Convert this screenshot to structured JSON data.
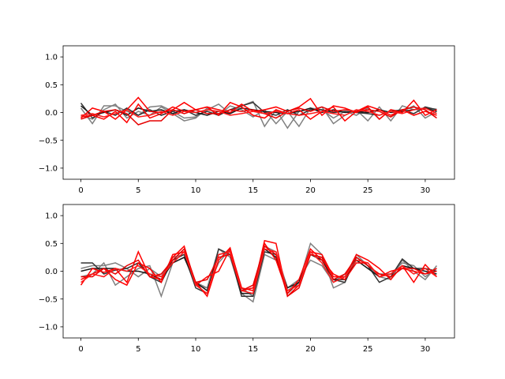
{
  "chart_data": [
    {
      "type": "line",
      "title": "",
      "xlabel": "",
      "ylabel": "",
      "xlim": [
        -1.55,
        32.55
      ],
      "ylim": [
        -1.2,
        1.2
      ],
      "xticks": [
        0,
        5,
        10,
        15,
        20,
        25,
        30
      ],
      "yticks": [
        -1.0,
        -0.5,
        0.0,
        0.5,
        1.0
      ],
      "xtick_labels": [
        "0",
        "5",
        "10",
        "15",
        "20",
        "25",
        "30"
      ],
      "ytick_labels": [
        "−1.0",
        "−0.5",
        "0.0",
        "0.5",
        "1.0"
      ],
      "grid": false,
      "x": [
        0,
        1,
        2,
        3,
        4,
        5,
        6,
        7,
        8,
        9,
        10,
        11,
        12,
        13,
        14,
        15,
        16,
        17,
        18,
        19,
        20,
        21,
        22,
        23,
        24,
        25,
        26,
        27,
        28,
        29,
        30,
        31
      ],
      "series": [
        {
          "color": "#808080",
          "values": [
            0.08,
            -0.2,
            0.12,
            0.12,
            0.02,
            -0.05,
            0.1,
            0.12,
            0.02,
            -0.1,
            -0.08,
            0.05,
            0.15,
            -0.02,
            0.12,
            0.2,
            -0.25,
            0.05,
            -0.28,
            0.02,
            0.05,
            0.1,
            -0.2,
            -0.05,
            0.05,
            -0.15,
            0.1,
            -0.15,
            0.12,
            0.05,
            0.08,
            0.06
          ]
        },
        {
          "color": "#808080",
          "values": [
            -0.05,
            -0.12,
            0.05,
            0.15,
            -0.1,
            0.02,
            -0.05,
            0.1,
            -0.02,
            -0.15,
            -0.1,
            0.08,
            -0.05,
            0.12,
            0.05,
            -0.08,
            0.05,
            -0.2,
            0.02,
            -0.25,
            0.08,
            0.05,
            -0.1,
            0.02,
            -0.05,
            0.08,
            -0.12,
            0.05,
            0.02,
            0.12,
            -0.1,
            0.02
          ]
        },
        {
          "color": "#333333",
          "values": [
            0.17,
            -0.1,
            0.02,
            -0.05,
            0.08,
            -0.05,
            0.05,
            -0.05,
            0.02,
            0.05,
            -0.05,
            0.02,
            -0.05,
            0.05,
            0.12,
            0.18,
            0.0,
            -0.05,
            0.05,
            -0.05,
            0.05,
            0.05,
            0.0,
            0.02,
            0.0,
            -0.02,
            -0.05,
            0.02,
            0.05,
            -0.02,
            0.1,
            0.05
          ]
        },
        {
          "color": "#1a1a1a",
          "values": [
            0.12,
            -0.05,
            0.0,
            0.05,
            -0.05,
            0.08,
            0.02,
            0.05,
            -0.02,
            0.05,
            0.0,
            -0.05,
            0.02,
            -0.02,
            0.08,
            0.05,
            0.02,
            0.0,
            -0.02,
            0.02,
            0.08,
            0.0,
            0.05,
            0.0,
            0.02,
            0.0,
            0.05,
            0.0,
            0.02,
            0.05,
            0.08,
            0.02
          ]
        },
        {
          "color": "#ff0000",
          "values": [
            -0.1,
            0.08,
            0.02,
            -0.12,
            0.05,
            0.27,
            0.02,
            0.0,
            0.05,
            0.18,
            0.05,
            0.1,
            0.05,
            0.0,
            0.15,
            0.02,
            0.05,
            0.1,
            0.02,
            0.1,
            0.25,
            -0.05,
            0.12,
            0.08,
            0.0,
            0.1,
            -0.12,
            0.05,
            0.0,
            0.22,
            -0.05,
            0.05
          ]
        },
        {
          "color": "#ff0000",
          "values": [
            -0.08,
            -0.05,
            -0.12,
            0.02,
            -0.18,
            0.15,
            -0.1,
            -0.02,
            0.1,
            0.02,
            0.05,
            0.1,
            -0.05,
            0.18,
            0.1,
            -0.05,
            -0.1,
            0.05,
            -0.02,
            0.05,
            -0.12,
            0.02,
            0.1,
            -0.15,
            0.02,
            0.12,
            0.05,
            -0.05,
            0.05,
            -0.05,
            0.02,
            -0.05
          ]
        },
        {
          "color": "#e60000",
          "values": [
            -0.12,
            -0.05,
            0.02,
            0.05,
            -0.02,
            -0.22,
            -0.15,
            -0.15,
            0.05,
            -0.02,
            0.05,
            -0.02,
            -0.02,
            0.05,
            0.02,
            0.05,
            -0.02,
            -0.1,
            0.02,
            0.08,
            0.02,
            0.1,
            0.02,
            0.05,
            0.02,
            0.05,
            0.02,
            -0.08,
            0.05,
            0.1,
            0.05,
            -0.1
          ]
        },
        {
          "color": "#ff1a1a",
          "values": [
            -0.05,
            -0.02,
            -0.08,
            -0.02,
            0.05,
            -0.08,
            -0.05,
            0.02,
            -0.05,
            0.02,
            0.0,
            0.05,
            0.02,
            -0.05,
            -0.02,
            0.02,
            -0.02,
            0.02,
            -0.02,
            -0.05,
            -0.02,
            0.02,
            -0.02,
            -0.05,
            0.05,
            0.02,
            -0.05,
            0.02,
            -0.02,
            0.05,
            0.08,
            -0.02
          ]
        }
      ]
    },
    {
      "type": "line",
      "title": "",
      "xlabel": "",
      "ylabel": "",
      "xlim": [
        -1.55,
        32.55
      ],
      "ylim": [
        -1.2,
        1.2
      ],
      "xticks": [
        0,
        5,
        10,
        15,
        20,
        25,
        30
      ],
      "yticks": [
        -1.0,
        -0.5,
        0.0,
        0.5,
        1.0
      ],
      "xtick_labels": [
        "0",
        "5",
        "10",
        "15",
        "20",
        "25",
        "30"
      ],
      "ytick_labels": [
        "−1.0",
        "−0.5",
        "0.0",
        "0.5",
        "1.0"
      ],
      "grid": false,
      "x": [
        0,
        1,
        2,
        3,
        4,
        5,
        6,
        7,
        8,
        9,
        10,
        11,
        12,
        13,
        14,
        15,
        16,
        17,
        18,
        19,
        20,
        21,
        22,
        23,
        24,
        25,
        26,
        27,
        28,
        29,
        30,
        31
      ],
      "series": [
        {
          "color": "#808080",
          "values": [
            -0.1,
            -0.05,
            0.15,
            -0.25,
            -0.1,
            0.05,
            0.1,
            -0.45,
            0.15,
            0.25,
            -0.25,
            -0.3,
            0.4,
            0.25,
            -0.4,
            -0.55,
            0.3,
            0.2,
            -0.35,
            -0.2,
            0.5,
            0.3,
            -0.3,
            -0.2,
            0.3,
            0.1,
            -0.1,
            -0.15,
            0.2,
            0.0,
            -0.15,
            0.1
          ]
        },
        {
          "color": "#808080",
          "values": [
            0.05,
            0.1,
            0.1,
            0.15,
            0.05,
            -0.1,
            0.05,
            -0.1,
            0.25,
            0.3,
            -0.2,
            -0.3,
            0.15,
            0.4,
            -0.3,
            -0.45,
            0.45,
            0.35,
            -0.3,
            -0.15,
            0.2,
            0.1,
            -0.2,
            -0.05,
            0.2,
            0.05,
            -0.05,
            -0.05,
            0.15,
            0.1,
            -0.1,
            0.05
          ]
        },
        {
          "color": "#333333",
          "values": [
            0.15,
            0.15,
            -0.05,
            0.02,
            0.05,
            0.15,
            -0.1,
            -0.2,
            0.2,
            0.3,
            -0.3,
            -0.4,
            0.4,
            0.3,
            -0.45,
            -0.45,
            0.35,
            0.3,
            -0.4,
            -0.2,
            0.3,
            0.25,
            -0.15,
            -0.2,
            0.25,
            0.1,
            -0.2,
            -0.1,
            0.22,
            0.05,
            0.05,
            0.0
          ]
        },
        {
          "color": "#1a1a1a",
          "values": [
            0.0,
            0.05,
            0.05,
            0.05,
            0.0,
            0.0,
            -0.05,
            -0.15,
            0.15,
            0.25,
            -0.2,
            -0.35,
            0.3,
            0.35,
            -0.4,
            -0.4,
            0.4,
            0.25,
            -0.3,
            -0.2,
            0.3,
            0.2,
            -0.15,
            -0.15,
            0.2,
            0.05,
            -0.1,
            -0.05,
            0.1,
            0.05,
            0.0,
            -0.05
          ]
        },
        {
          "color": "#ff0000",
          "values": [
            -0.25,
            0.05,
            -0.02,
            0.05,
            -0.2,
            0.35,
            -0.1,
            -0.15,
            0.25,
            0.45,
            -0.25,
            -0.1,
            0.0,
            0.4,
            -0.3,
            -0.35,
            0.55,
            0.5,
            -0.45,
            -0.25,
            0.35,
            0.3,
            -0.1,
            -0.1,
            0.3,
            0.2,
            0.05,
            -0.15,
            0.1,
            -0.2,
            0.12,
            -0.1
          ]
        },
        {
          "color": "#ff0000",
          "values": [
            -0.15,
            -0.05,
            0.05,
            -0.15,
            -0.25,
            0.15,
            0.05,
            -0.2,
            0.3,
            0.35,
            -0.2,
            -0.45,
            0.2,
            0.42,
            -0.35,
            -0.3,
            0.5,
            0.2,
            -0.4,
            -0.15,
            0.4,
            0.2,
            -0.05,
            -0.15,
            0.15,
            0.15,
            -0.1,
            0.0,
            0.05,
            0.0,
            -0.05,
            0.05
          ]
        },
        {
          "color": "#e60000",
          "values": [
            -0.1,
            -0.1,
            0.05,
            -0.05,
            0.1,
            0.2,
            -0.1,
            -0.05,
            0.2,
            0.4,
            -0.2,
            -0.15,
            0.25,
            0.3,
            -0.35,
            -0.25,
            0.45,
            0.3,
            -0.45,
            -0.3,
            0.3,
            0.25,
            -0.15,
            -0.05,
            0.25,
            0.1,
            -0.05,
            -0.1,
            0.05,
            0.05,
            -0.05,
            0.0
          ]
        },
        {
          "color": "#ff1a1a",
          "values": [
            -0.2,
            -0.05,
            -0.1,
            0.05,
            0.0,
            0.1,
            -0.05,
            -0.1,
            0.15,
            0.35,
            -0.25,
            -0.4,
            0.3,
            0.35,
            -0.35,
            -0.4,
            0.4,
            0.35,
            -0.35,
            -0.25,
            0.35,
            0.15,
            -0.2,
            -0.1,
            0.2,
            0.15,
            -0.1,
            -0.05,
            0.1,
            -0.05,
            0.05,
            -0.1
          ]
        }
      ]
    }
  ]
}
